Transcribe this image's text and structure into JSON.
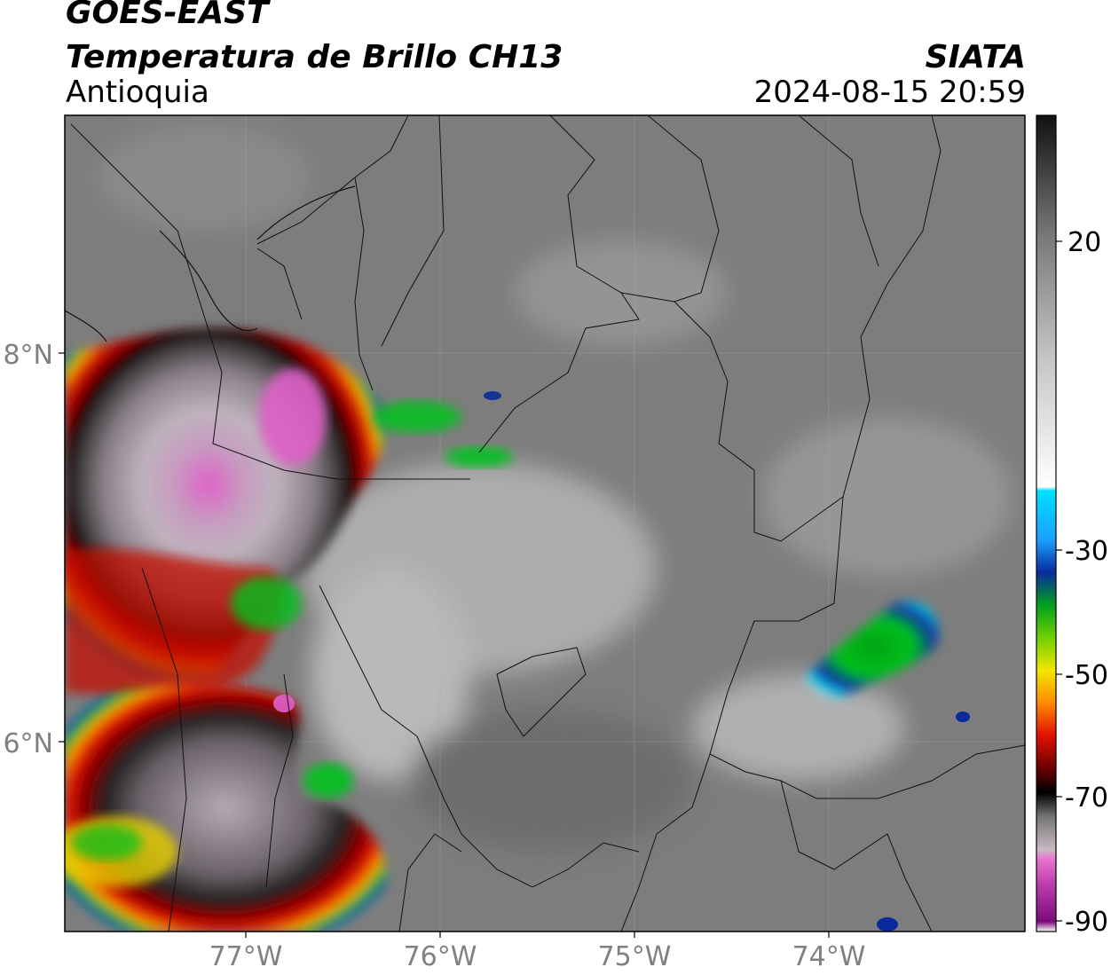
{
  "header": {
    "satellite": "GOES-EAST",
    "product": "Temperatura de Brillo CH13",
    "region": "Antioquia",
    "organization": "SIATA",
    "timestamp": "2024-08-15 20:59"
  },
  "map": {
    "lat_ticks": [
      "8°N",
      "6°N"
    ],
    "lon_ticks": [
      "77°W",
      "76°W",
      "75°W",
      "74°W"
    ]
  },
  "colorbar": {
    "tick_labels": [
      "20",
      "-30",
      "-50",
      "-70",
      "-90"
    ],
    "palette": {
      "warm_gray": "#7a7a7a",
      "light_gray": "#e6e6e6",
      "cyan": "#00d8f0",
      "blue": "#0a2a9c",
      "green": "#00c21a",
      "yellow": "#f2e600",
      "orange": "#ff8a00",
      "red": "#e01000",
      "dark_red": "#6a0000",
      "black": "#101010",
      "magenta": "#e060c8",
      "purple": "#8a1a8a"
    }
  }
}
